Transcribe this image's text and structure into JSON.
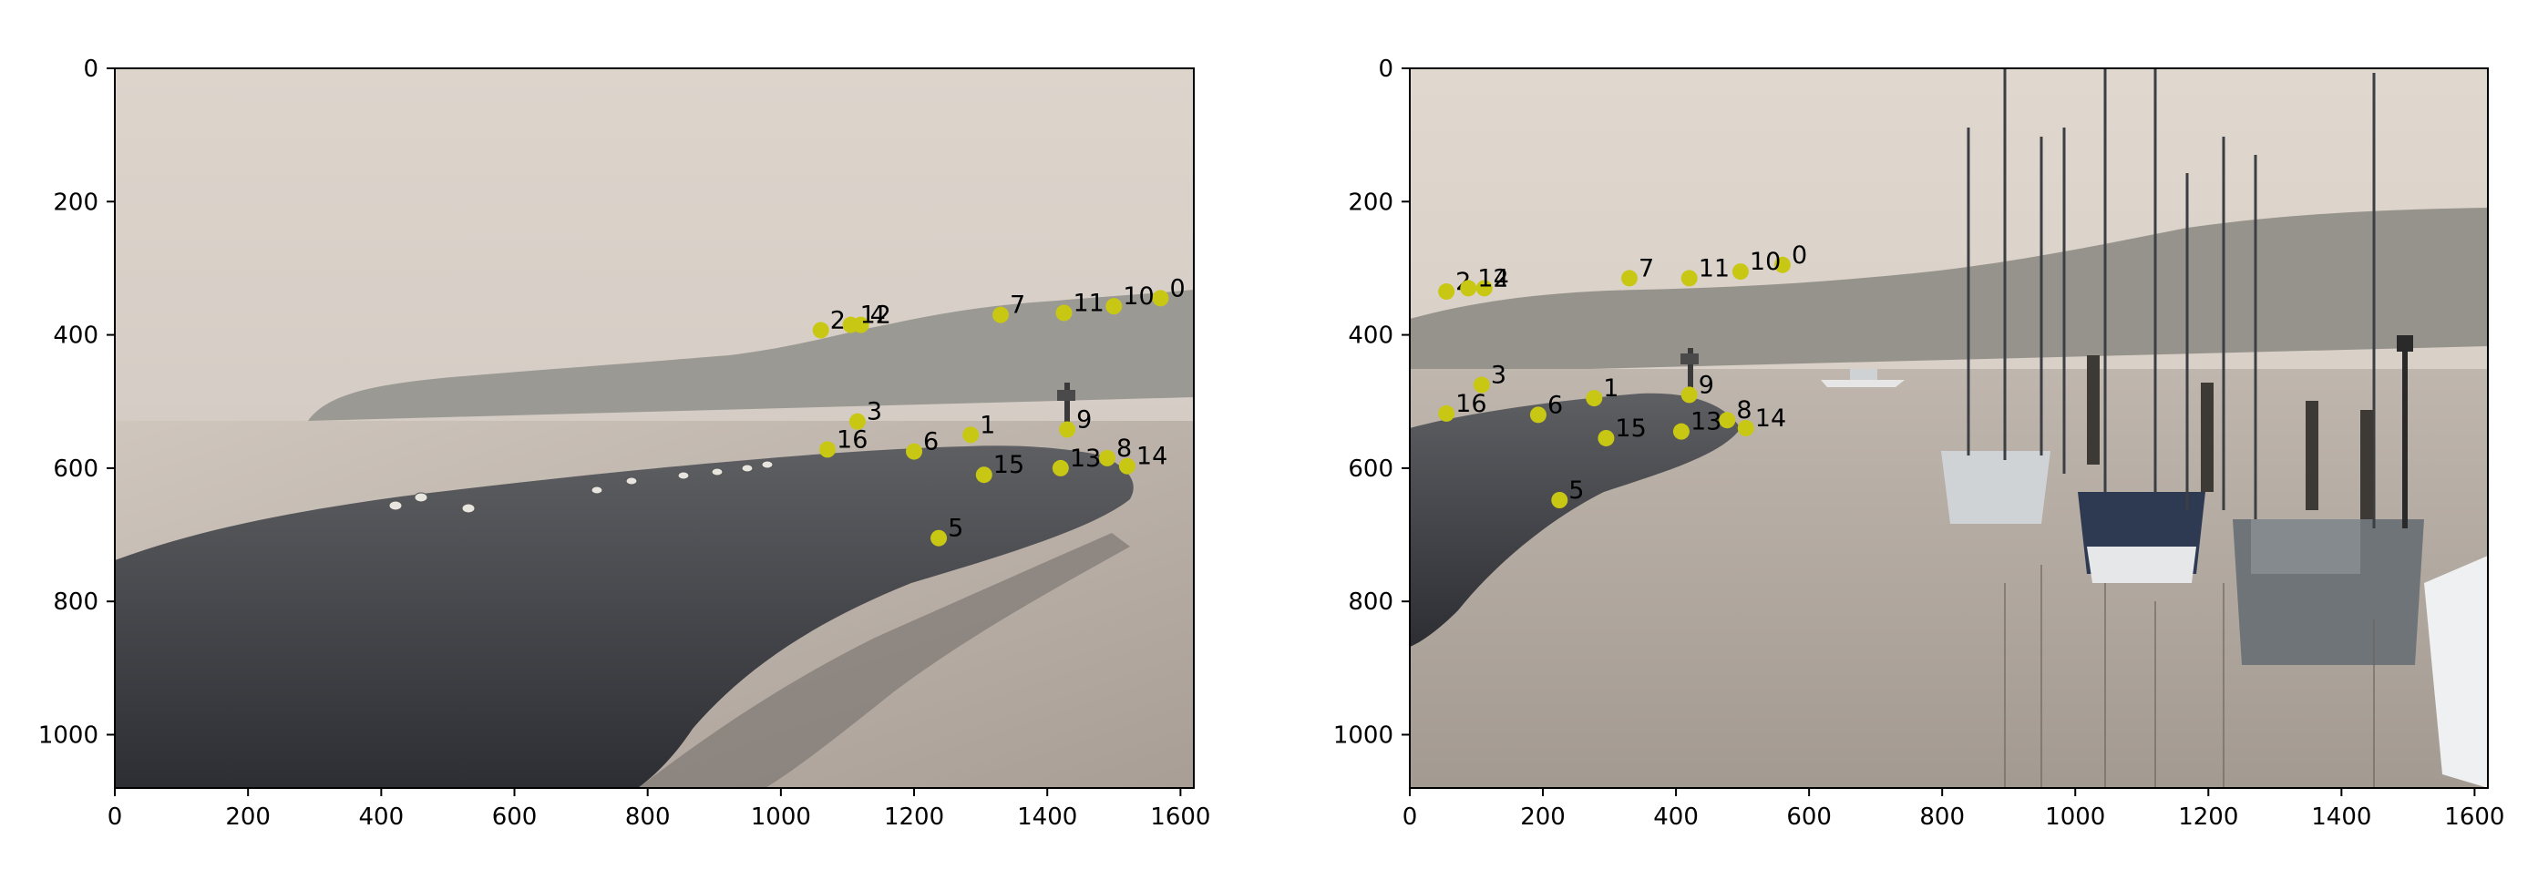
{
  "chart_data": [
    {
      "type": "scatter",
      "title": "",
      "background": "photo: foggy harbour, rock jetty extending into calm water, seagulls on rocks, forested headland",
      "xlabel": "",
      "ylabel": "",
      "xlim": [
        0,
        1620
      ],
      "ylim": [
        1080,
        0
      ],
      "xticks": [
        0,
        200,
        400,
        600,
        800,
        1000,
        1200,
        1400,
        1600
      ],
      "yticks": [
        0,
        200,
        400,
        600,
        800,
        1000
      ],
      "xtick_labels": [
        "0",
        "200",
        "400",
        "600",
        "800",
        "1000",
        "1200",
        "1400",
        "1600"
      ],
      "ytick_labels": [
        "0",
        "200",
        "400",
        "600",
        "800",
        "1000"
      ],
      "marker_color": "#c8c814",
      "points": [
        {
          "id": "0",
          "x": 1570,
          "y": 345
        },
        {
          "id": "1",
          "x": 1285,
          "y": 550
        },
        {
          "id": "2",
          "x": 1060,
          "y": 393
        },
        {
          "id": "3",
          "x": 1115,
          "y": 530
        },
        {
          "id": "4",
          "x": 1120,
          "y": 385
        },
        {
          "id": "5",
          "x": 1237,
          "y": 705
        },
        {
          "id": "6",
          "x": 1200,
          "y": 575
        },
        {
          "id": "7",
          "x": 1330,
          "y": 370
        },
        {
          "id": "8",
          "x": 1490,
          "y": 585
        },
        {
          "id": "9",
          "x": 1430,
          "y": 542
        },
        {
          "id": "10",
          "x": 1500,
          "y": 357
        },
        {
          "id": "11",
          "x": 1425,
          "y": 367
        },
        {
          "id": "12",
          "x": 1105,
          "y": 385
        },
        {
          "id": "13",
          "x": 1420,
          "y": 600
        },
        {
          "id": "14",
          "x": 1520,
          "y": 597
        },
        {
          "id": "15",
          "x": 1305,
          "y": 610
        },
        {
          "id": "16",
          "x": 1070,
          "y": 572
        }
      ]
    },
    {
      "type": "scatter",
      "title": "",
      "background": "photo: foggy marina with moored sailboats and motorboats, rock jetty on left, hillside town in background",
      "xlabel": "",
      "ylabel": "",
      "xlim": [
        0,
        1620
      ],
      "ylim": [
        1080,
        0
      ],
      "xticks": [
        0,
        200,
        400,
        600,
        800,
        1000,
        1200,
        1400,
        1600
      ],
      "yticks": [
        0,
        200,
        400,
        600,
        800,
        1000
      ],
      "xtick_labels": [
        "0",
        "200",
        "400",
        "600",
        "800",
        "1000",
        "1200",
        "1400",
        "1600"
      ],
      "ytick_labels": [
        "0",
        "200",
        "400",
        "600",
        "800",
        "1000"
      ],
      "marker_color": "#c8c814",
      "points": [
        {
          "id": "0",
          "x": 560,
          "y": 295
        },
        {
          "id": "1",
          "x": 277,
          "y": 495
        },
        {
          "id": "2",
          "x": 55,
          "y": 335
        },
        {
          "id": "3",
          "x": 108,
          "y": 475
        },
        {
          "id": "4",
          "x": 112,
          "y": 330
        },
        {
          "id": "5",
          "x": 225,
          "y": 648
        },
        {
          "id": "6",
          "x": 193,
          "y": 520
        },
        {
          "id": "7",
          "x": 330,
          "y": 315
        },
        {
          "id": "8",
          "x": 477,
          "y": 528
        },
        {
          "id": "9",
          "x": 420,
          "y": 490
        },
        {
          "id": "10",
          "x": 497,
          "y": 305
        },
        {
          "id": "11",
          "x": 420,
          "y": 315
        },
        {
          "id": "12",
          "x": 88,
          "y": 330
        },
        {
          "id": "13",
          "x": 408,
          "y": 545
        },
        {
          "id": "14",
          "x": 505,
          "y": 540
        },
        {
          "id": "15",
          "x": 295,
          "y": 555
        },
        {
          "id": "16",
          "x": 55,
          "y": 518
        }
      ]
    }
  ]
}
